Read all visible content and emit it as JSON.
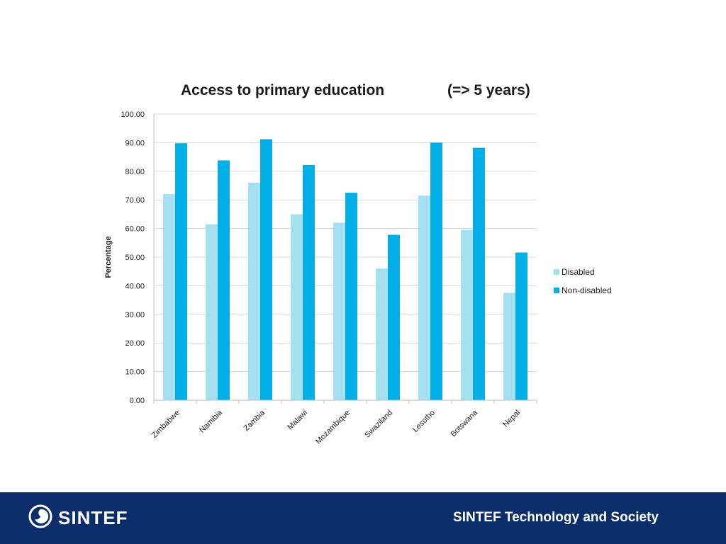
{
  "slide": {
    "title": "Access to primary education",
    "subtitle": "(=> 5 years)"
  },
  "footer": {
    "logo_text": "SINTEF",
    "org_text": "SINTEF Technology and Society",
    "background_color": "#0b2e6b"
  },
  "chart_data": {
    "type": "bar",
    "title": "Access to primary education",
    "subtitle": "(=> 5 years)",
    "xlabel": "",
    "ylabel": "Percentage",
    "categories": [
      "Zimbabwe",
      "Namibia",
      "Zambia",
      "Malawi",
      "Mozambique",
      "Swaziland",
      "Lesotho",
      "Botswana",
      "Nepal"
    ],
    "series": [
      {
        "name": "Disabled",
        "color": "#a6dff0",
        "values": [
          72.0,
          61.5,
          76.0,
          65.0,
          62.0,
          46.0,
          71.5,
          59.5,
          37.5
        ]
      },
      {
        "name": "Non-disabled",
        "color": "#00aee8",
        "values": [
          89.8,
          83.8,
          91.2,
          82.2,
          72.5,
          57.8,
          90.0,
          88.2,
          51.6
        ]
      }
    ],
    "ylim": [
      0,
      100
    ],
    "yticks": [
      "0.00",
      "10.00",
      "20.00",
      "30.00",
      "40.00",
      "50.00",
      "60.00",
      "70.00",
      "80.00",
      "90.00",
      "100.00"
    ],
    "grid": true,
    "legend_position": "right"
  }
}
